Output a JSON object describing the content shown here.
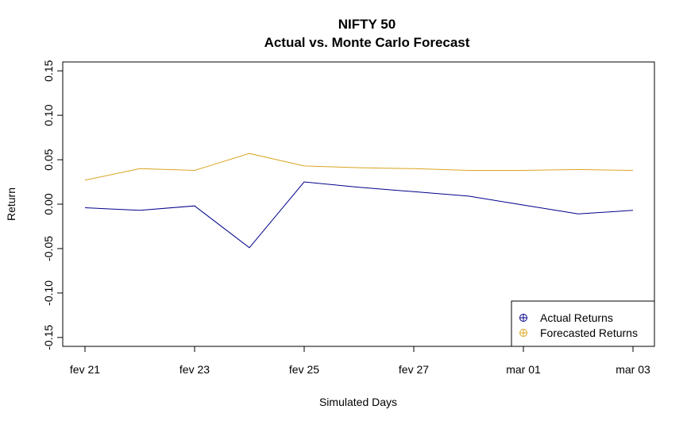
{
  "chart_data": {
    "type": "line",
    "title": "NIFTY 50",
    "subtitle": "Actual vs. Monte Carlo Forecast",
    "xlabel": "Simulated Days",
    "ylabel": "Return",
    "x": [
      "fev 21",
      "fev 22",
      "fev 23",
      "fev 24",
      "fev 25",
      "fev 26",
      "fev 27",
      "fev 28",
      "mar 01",
      "mar 02",
      "mar 03"
    ],
    "x_tick_labels": [
      "fev 21",
      "fev 23",
      "fev 25",
      "fev 27",
      "mar 01",
      "mar 03"
    ],
    "y_ticks": [
      -0.15,
      -0.1,
      -0.05,
      0.0,
      0.05,
      0.1,
      0.15
    ],
    "y_tick_labels": [
      "-0.15",
      "-0.10",
      "-0.05",
      "0.00",
      "0.05",
      "0.10",
      "0.15"
    ],
    "ylim": [
      -0.16,
      0.16
    ],
    "grid": false,
    "legend_position": "bottom-right",
    "series": [
      {
        "name": "Actual Returns",
        "color": "#00008b",
        "values": [
          -0.004,
          -0.007,
          -0.002,
          -0.049,
          0.025,
          0.019,
          0.014,
          0.009,
          -0.001,
          -0.011,
          -0.007
        ]
      },
      {
        "name": "Forecasted Returns",
        "color": "#daa520",
        "values": [
          0.027,
          0.04,
          0.038,
          0.057,
          0.043,
          0.041,
          0.04,
          0.038,
          0.038,
          0.039,
          0.038
        ]
      }
    ]
  }
}
